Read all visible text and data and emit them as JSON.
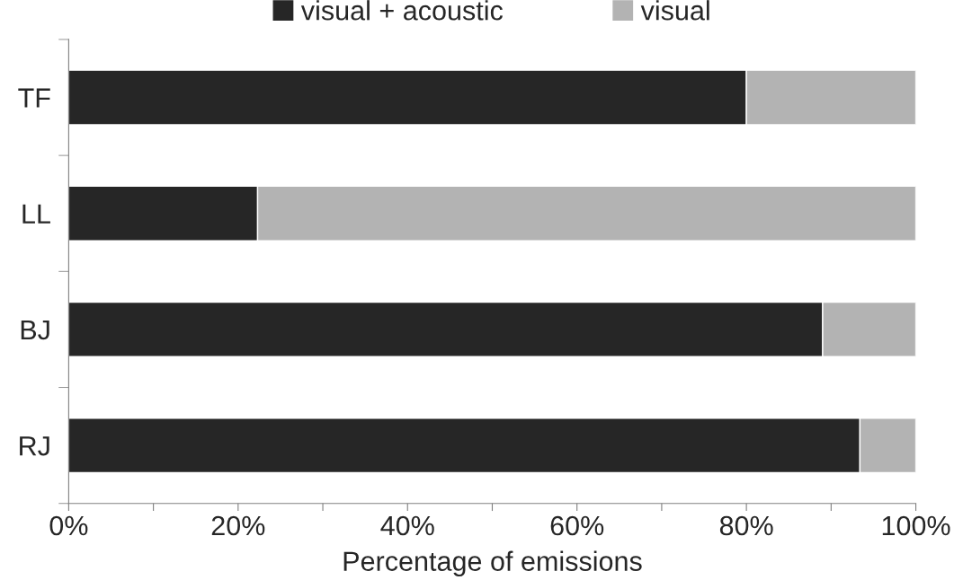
{
  "chart_data": {
    "type": "bar",
    "orientation": "horizontal",
    "stacked": true,
    "xlabel": "Percentage of emissions",
    "categories": [
      "TF",
      "LL",
      "BJ",
      "RJ"
    ],
    "series": [
      {
        "name": "visual + acoustic",
        "color": "#262626",
        "values": [
          80.0,
          22.3,
          89.0,
          93.4
        ]
      },
      {
        "name": "visual",
        "color": "#b3b3b3",
        "values": [
          20.0,
          77.7,
          11.0,
          6.6
        ]
      }
    ],
    "xlim": [
      0,
      100
    ],
    "xticks": [
      {
        "value": 0,
        "label": "0%"
      },
      {
        "value": 10,
        "label": null
      },
      {
        "value": 20,
        "label": "20%"
      },
      {
        "value": 30,
        "label": null
      },
      {
        "value": 40,
        "label": "40%"
      },
      {
        "value": 50,
        "label": null
      },
      {
        "value": 60,
        "label": "60%"
      },
      {
        "value": 70,
        "label": null
      },
      {
        "value": 80,
        "label": "80%"
      },
      {
        "value": 90,
        "label": null
      },
      {
        "value": 100,
        "label": "100%"
      }
    ],
    "grid": false,
    "legend": "top"
  }
}
